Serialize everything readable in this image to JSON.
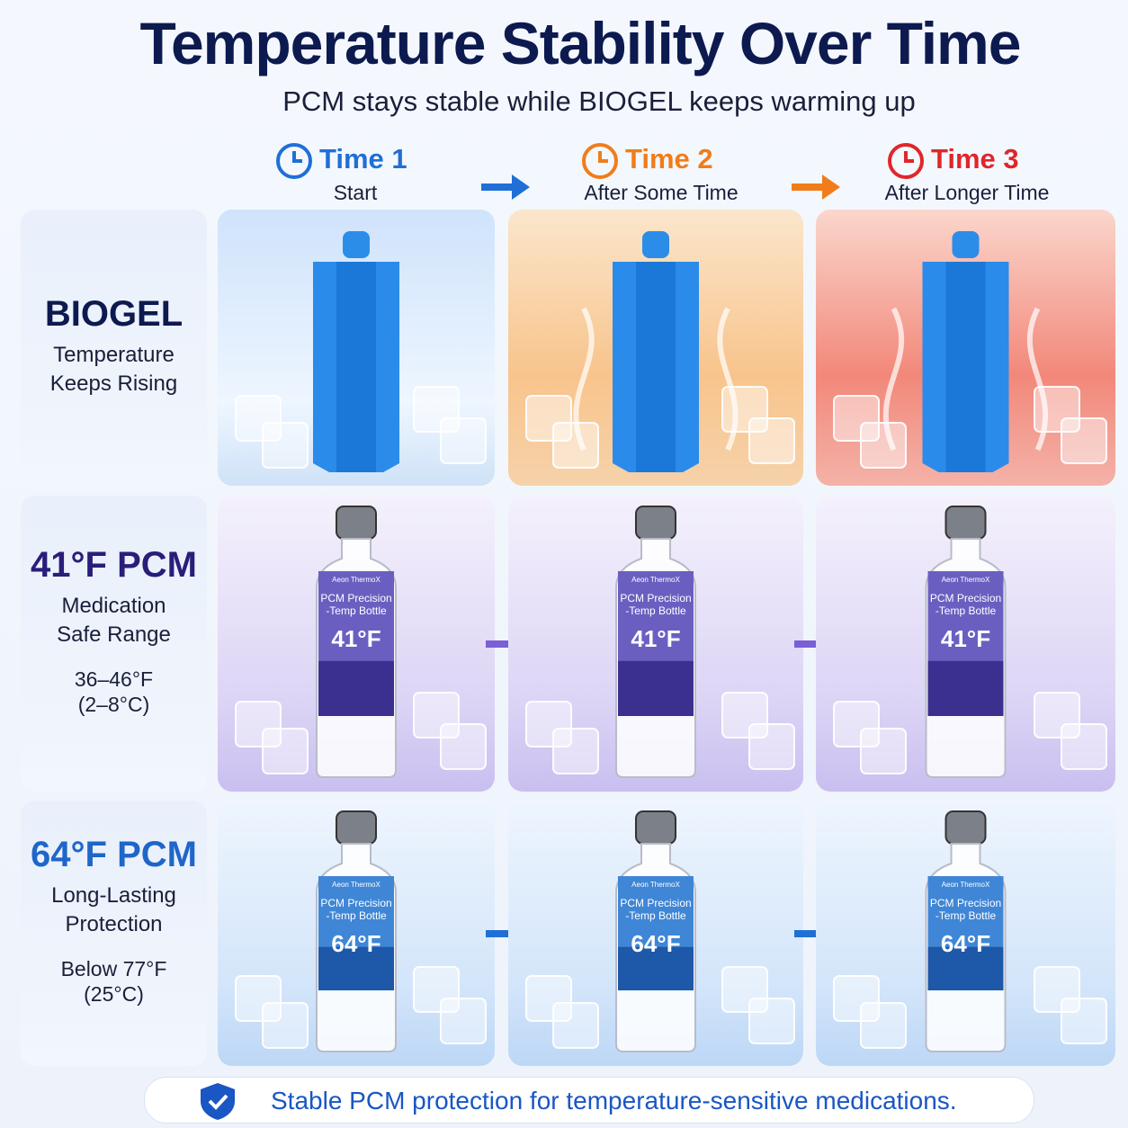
{
  "header": {
    "title": "Temperature Stability Over Time",
    "subtitle": "PCM stays stable while BIOGEL keeps warming up"
  },
  "columns": [
    {
      "label": "Time 1",
      "sub": "Start",
      "color": "#1f6fd6"
    },
    {
      "label": "Time 2",
      "sub": "After Some Time",
      "color": "#f07d1a"
    },
    {
      "label": "Time 3",
      "sub": "After Longer Time",
      "color": "#e0262a"
    }
  ],
  "rows": [
    {
      "title": "BIOGEL",
      "desc_lines": [
        "Temperature",
        "Keeps Rising"
      ],
      "color": "#0d1a4f"
    },
    {
      "title": "41°F PCM",
      "desc_lines": [
        "Medication",
        "Safe Range"
      ],
      "range_lines": [
        "36–46°F",
        "(2–8°C)"
      ],
      "color": "#2a1d7a",
      "temp": "41°F"
    },
    {
      "title": "64°F PCM",
      "desc_lines": [
        "Long-Lasting",
        "Protection"
      ],
      "range_lines": [
        "Below 77°F",
        "(25°C)"
      ],
      "color": "#1f66c9",
      "temp": "64°F"
    }
  ],
  "bottle": {
    "brand": "Aeon ThermoX",
    "name_lines": [
      "PCM Precision",
      "-Temp Bottle"
    ]
  },
  "footer": "Stable PCM protection for temperature-sensitive medications."
}
